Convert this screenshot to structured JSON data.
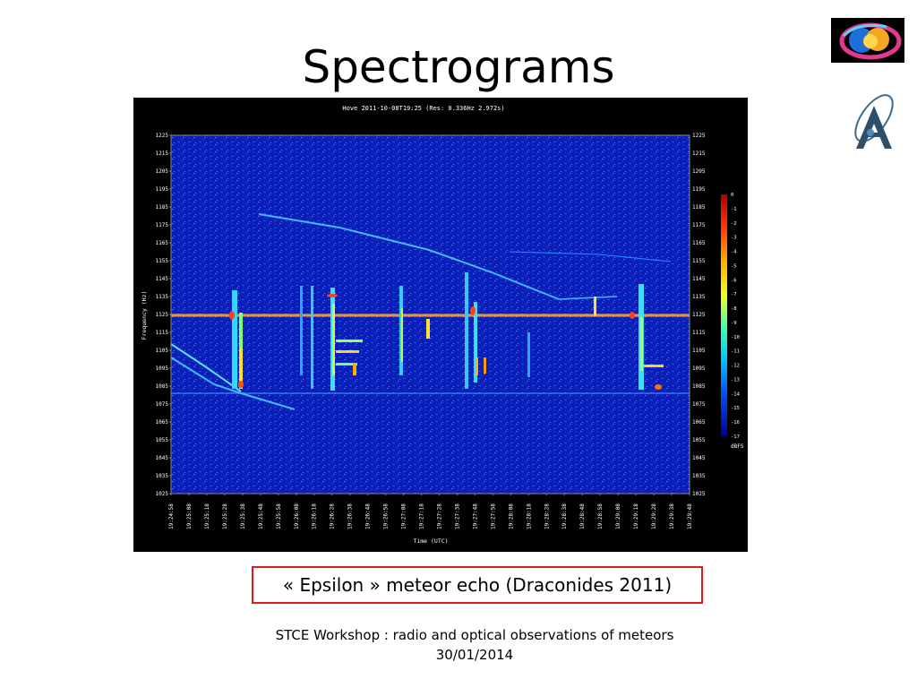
{
  "slide": {
    "title": "Spectrograms",
    "caption": "« Epsilon » meteor echo (Draconides 2011)",
    "footer_line1": "STCE Workshop : radio and optical observations of meteors",
    "footer_line2": "30/01/2014"
  },
  "spectrogram": {
    "header": "Hove 2011-10-08T19:25 (Res: 0.336Hz 2.972s)",
    "y_label": "Frequency (Hz)",
    "x_label": "Time (UTC)",
    "colorbar_unit": "dBFS",
    "frequency_ticks": [
      "1225",
      "1215",
      "1205",
      "1195",
      "1185",
      "1175",
      "1165",
      "1155",
      "1145",
      "1135",
      "1125",
      "1115",
      "1105",
      "1095",
      "1085",
      "1075",
      "1065",
      "1055",
      "1045",
      "1035",
      "1025"
    ],
    "time_ticks": [
      "19:24:58",
      "19:25:08",
      "19:25:18",
      "19:25:28",
      "19:25:38",
      "19:25:48",
      "19:25:58",
      "19:26:08",
      "19:26:18",
      "19:26:28",
      "19:26:38",
      "19:26:48",
      "19:26:58",
      "19:27:08",
      "19:27:18",
      "19:27:28",
      "19:27:38",
      "19:27:48",
      "19:27:58",
      "19:28:08",
      "19:28:18",
      "19:28:28",
      "19:28:38",
      "19:28:48",
      "19:28:58",
      "19:29:08",
      "19:29:18",
      "19:29:28",
      "19:29:38",
      "19:29:48"
    ],
    "colorbar_ticks": [
      "0",
      "-1",
      "-2",
      "-3",
      "-4",
      "-5",
      "-6",
      "-7",
      "-8",
      "-9",
      "-10",
      "-11",
      "-12",
      "-13",
      "-14",
      "-15",
      "-16",
      "-17"
    ],
    "colors": {
      "background": "#000000",
      "plot_base": "#0b1fb8",
      "text": "#ffffff"
    }
  }
}
